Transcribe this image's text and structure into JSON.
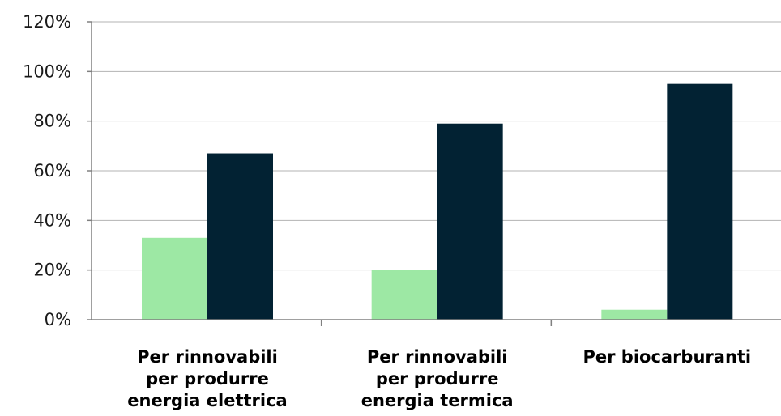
{
  "chart_data": {
    "type": "bar",
    "title": "",
    "xlabel": "",
    "ylabel": "",
    "ylim": [
      0,
      120
    ],
    "y_ticks": [
      0,
      20,
      40,
      60,
      80,
      100,
      120
    ],
    "y_tick_labels": [
      "0%",
      "20%",
      "40%",
      "60%",
      "80%",
      "100%",
      "120%"
    ],
    "grid": true,
    "legend": "none",
    "categories": [
      [
        "Per rinnovabili",
        "per produrre",
        "energia elettrica"
      ],
      [
        "Per rinnovabili",
        "per produrre",
        "energia termica"
      ],
      [
        "Per biocarburanti"
      ]
    ],
    "series": [
      {
        "color": "#9de8a4",
        "values": [
          33,
          20,
          4
        ]
      },
      {
        "color": "#022233",
        "values": [
          67,
          79,
          95
        ]
      }
    ]
  }
}
